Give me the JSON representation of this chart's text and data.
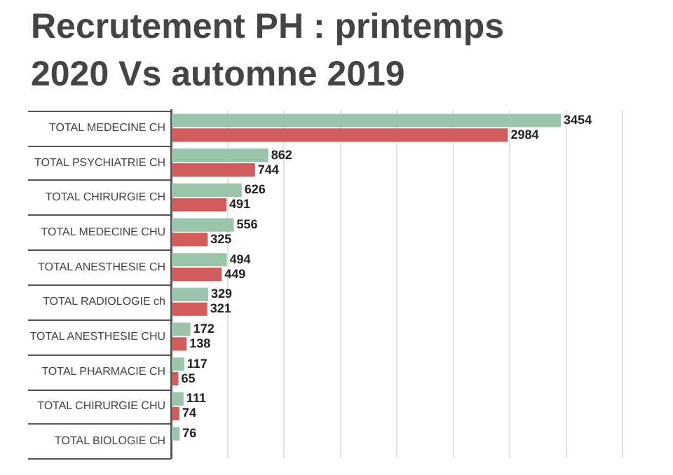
{
  "chart_data": {
    "type": "bar",
    "orientation": "horizontal",
    "title": "Recrutement PH : printemps 2020 Vs automne 2019",
    "categories": [
      "TOTAL MEDECINE CH",
      "TOTAL PSYCHIATRIE CH",
      "TOTAL CHIRURGIE CH",
      "TOTAL MEDECINE CHU",
      "TOTAL ANESTHESIE CH",
      "TOTAL RADIOLOGIE ch",
      "TOTAL ANESTHESIE CHU",
      "TOTAL PHARMACIE CH",
      "TOTAL CHIRURGIE CHU",
      "TOTAL BIOLOGIE CH"
    ],
    "series": [
      {
        "color": "#9ac5aa",
        "values": [
          3454,
          862,
          626,
          556,
          494,
          329,
          172,
          117,
          111,
          76
        ]
      },
      {
        "color": "#d05c5c",
        "values": [
          2984,
          744,
          491,
          325,
          449,
          321,
          138,
          65,
          74,
          null
        ]
      }
    ],
    "xlim": [
      0,
      4000
    ],
    "xticks": [
      {
        "value": 0,
        "label": null
      },
      {
        "value": 500,
        "label": null
      },
      {
        "value": 1000,
        "label": null
      },
      {
        "value": 1500,
        "label": null
      },
      {
        "value": 2000,
        "label": null
      },
      {
        "value": 2500,
        "label": null
      },
      {
        "value": 3000,
        "label": null
      },
      {
        "value": 3500,
        "label": null
      },
      {
        "value": 4000,
        "label": null
      }
    ],
    "grid": "x",
    "tick_labels": "y",
    "data_labels": true
  }
}
